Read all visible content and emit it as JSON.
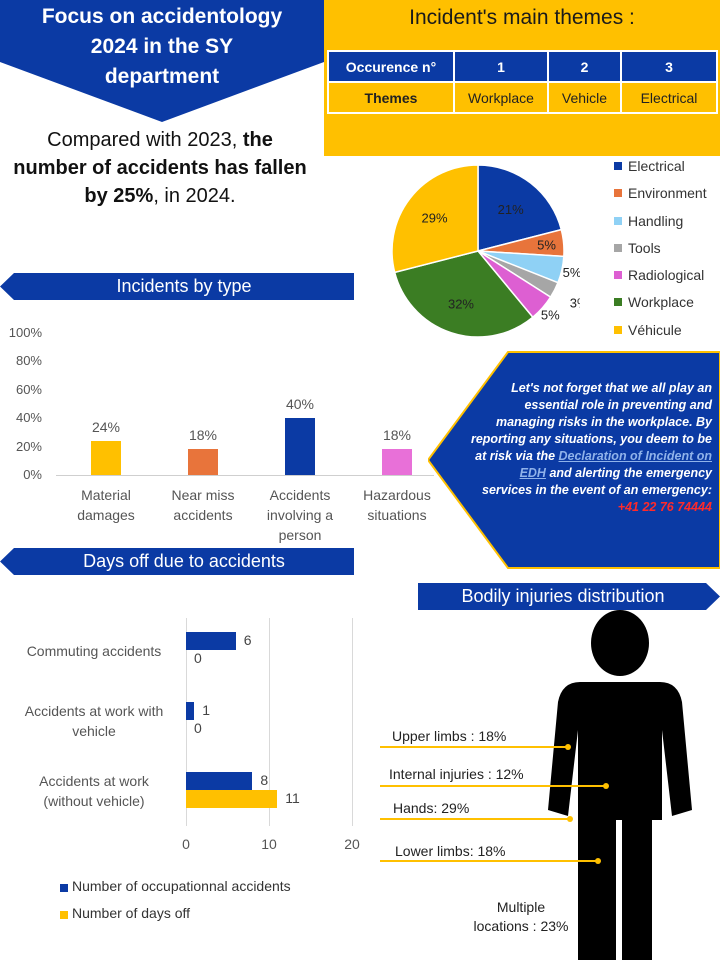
{
  "colors": {
    "navy": "#0b3aa4",
    "yellow": "#ffc000",
    "orange": "#e8743b",
    "light_blue": "#8fd1f5",
    "gray": "#a6a6a6",
    "magenta": "#dd5fd2",
    "green": "#3b7d23",
    "pink": "#e870d8"
  },
  "title": {
    "text": "Focus on accidentology\n2024 in the SY\ndepartment"
  },
  "comparison": {
    "part1": "Compared with 2023, ",
    "bold": "the number of accidents has fallen by 25%",
    "part2": ", in 2024."
  },
  "themes": {
    "title": "Incident's main themes :",
    "header": [
      "Occurence n°",
      "1",
      "2",
      "3"
    ],
    "row": [
      "Themes",
      "Workplace",
      "Vehicle",
      "Electrical"
    ]
  },
  "sections": {
    "incidents_by_type": "Incidents by type",
    "days_off": "Days off due to accidents",
    "bodily": "Bodily injuries distribution"
  },
  "callout": {
    "text_before": "Let's not forget that we all play an essential role in preventing and managing risks in the workplace. By reporting any situations, you deem to be at risk via the ",
    "link": "Declaration of Incident on EDH",
    "text_middle": " and alerting the emergency services in the event of an emergency: ",
    "phone": "+41 22 76 74444"
  },
  "chart_data": [
    {
      "type": "pie",
      "labels": [
        "Electrical",
        "Environment",
        "Handling",
        "Tools",
        "Radiological",
        "Workplace",
        "Véhicule"
      ],
      "values": [
        21,
        5,
        5,
        3,
        5,
        32,
        29
      ],
      "value_labels": [
        "21%",
        "5%",
        "5%",
        "3%",
        "5%",
        "32%",
        "29%"
      ],
      "colors": [
        "#0b3aa4",
        "#e8743b",
        "#8fd1f5",
        "#a6a6a6",
        "#dd5fd2",
        "#3b7d23",
        "#ffc000"
      ],
      "legend": "right"
    },
    {
      "type": "bar",
      "categories": [
        "Material\ndamages",
        "Near miss\naccidents",
        "Accidents\ninvolving a\nperson",
        "Hazardous\nsituations"
      ],
      "values": [
        24,
        18,
        40,
        18
      ],
      "value_labels": [
        "24%",
        "18%",
        "40%",
        "18%"
      ],
      "colors": [
        "#ffc000",
        "#e8743b",
        "#0b3aa4",
        "#e870d8"
      ],
      "ylim": [
        0,
        100
      ],
      "yticks": [
        "0%",
        "20%",
        "40%",
        "60%",
        "80%",
        "100%"
      ]
    },
    {
      "type": "bar",
      "orientation": "horizontal",
      "categories": [
        "Commuting accidents",
        "Accidents at work with\nvehicle",
        "Accidents at work\n(without vehicle)"
      ],
      "series": [
        {
          "name": "Number of occupationnal accidents",
          "values": [
            6,
            1,
            8
          ],
          "color": "#0b3aa4"
        },
        {
          "name": "Number of days off",
          "values": [
            0,
            0,
            11
          ],
          "color": "#ffc000"
        }
      ],
      "xlim": [
        0,
        20
      ],
      "xticks": [
        "0",
        "10",
        "20"
      ],
      "grid": true,
      "legend": "bottom"
    },
    {
      "type": "table",
      "title": "Bodily injuries distribution",
      "labels": [
        "Upper limbs : 18%",
        "Internal injuries : 12%",
        "Hands: 29%",
        "Lower limbs: 18%",
        "Multiple\nlocations : 23%"
      ],
      "values": [
        18,
        12,
        29,
        18,
        23
      ]
    }
  ]
}
